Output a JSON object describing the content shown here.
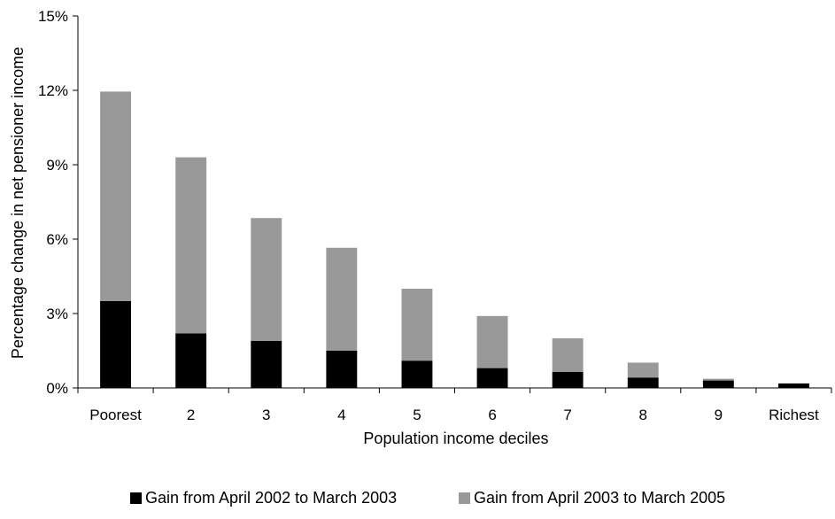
{
  "chart_data": {
    "type": "bar",
    "stacked": true,
    "title": "",
    "xlabel": "Population income deciles",
    "ylabel": "Percentage change in net pensioner income",
    "ylim": [
      0,
      15
    ],
    "y_unit": "%",
    "y_ticks": [
      0,
      3,
      6,
      9,
      12,
      15
    ],
    "y_tick_labels": [
      "0%",
      "3%",
      "6%",
      "9%",
      "12%",
      "15%"
    ],
    "grid": false,
    "legend_position": "bottom",
    "categories": [
      "Poorest",
      "2",
      "3",
      "4",
      "5",
      "6",
      "7",
      "8",
      "9",
      "Richest"
    ],
    "series": [
      {
        "name": "Gain from April 2002 to March 2003",
        "color": "#000000",
        "values": [
          3.5,
          2.2,
          1.9,
          1.5,
          1.1,
          0.8,
          0.65,
          0.42,
          0.3,
          0.18
        ]
      },
      {
        "name": "Gain from April 2003 to March 2005",
        "color": "#999999",
        "values": [
          8.45,
          7.1,
          4.95,
          4.15,
          2.9,
          2.1,
          1.35,
          0.6,
          0.07,
          0.0
        ]
      }
    ]
  }
}
